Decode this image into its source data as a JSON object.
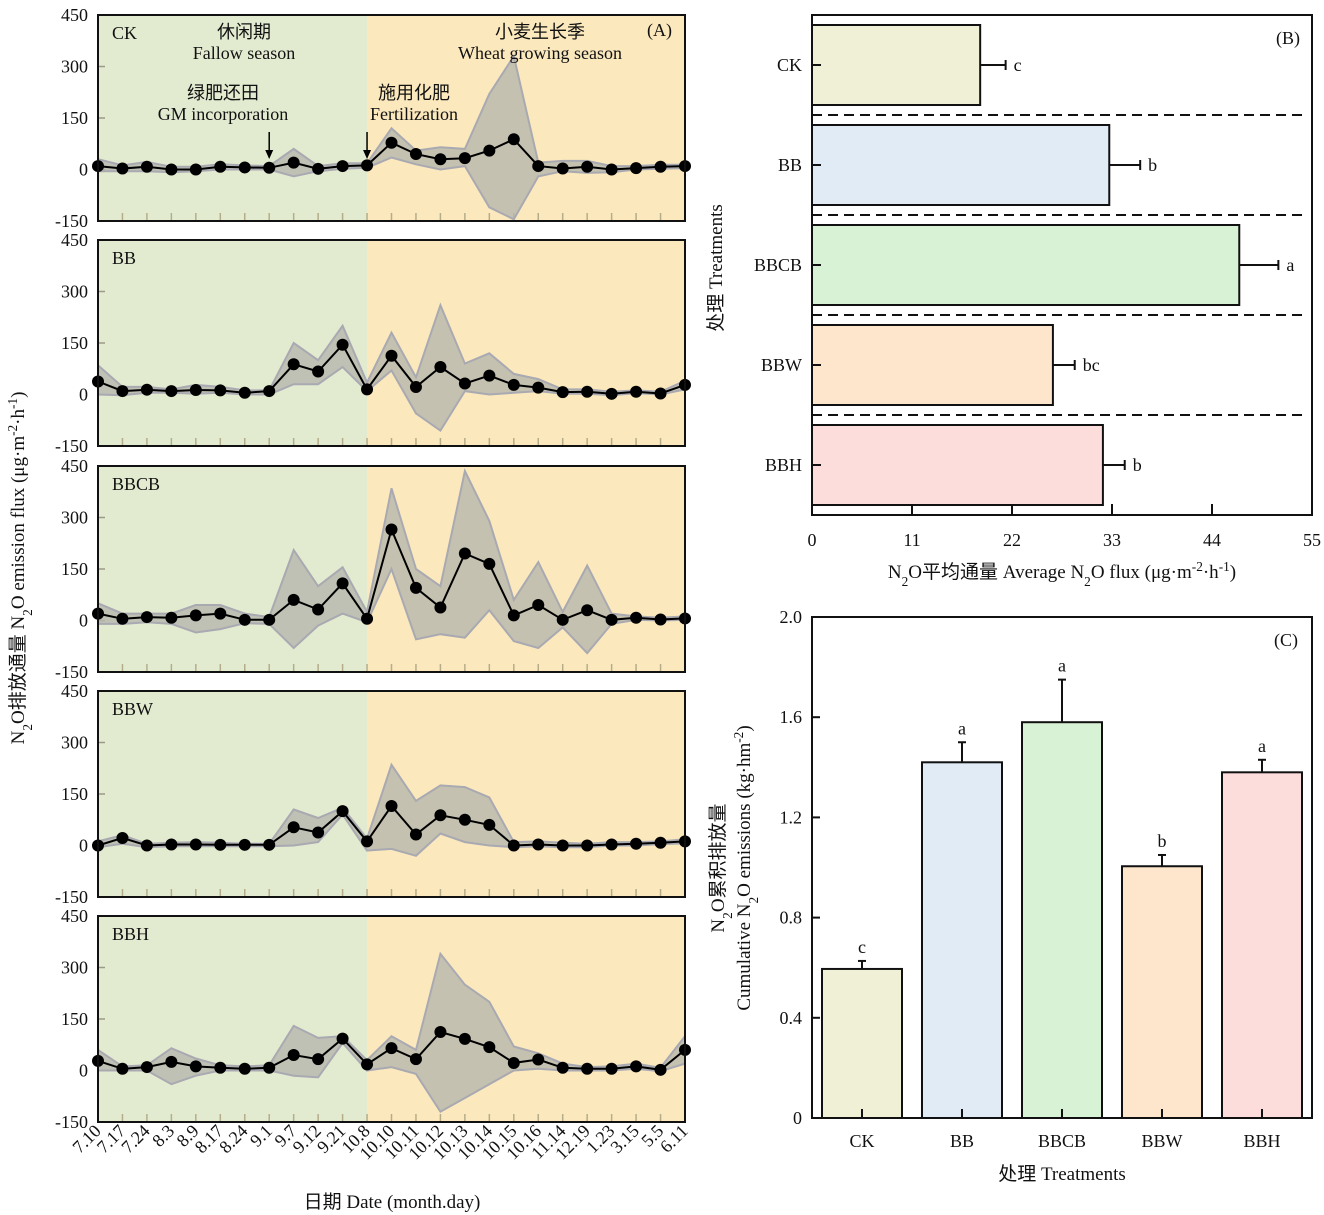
{
  "colors": {
    "fallow_bg": "#e2ebd0",
    "wheat_bg": "#fbe8bd",
    "band_fill": "#b7b6ac",
    "band_stroke": "#a9a9b1",
    "line": "#000000",
    "bars": {
      "CK": "#f0f0d6",
      "BB": "#e0ebf6",
      "BBCB": "#d8f2d6",
      "BBW": "#fde6cc",
      "BBH": "#fddcdc"
    }
  },
  "chart_data": [
    {
      "id": "A",
      "type": "line",
      "panel_label": "(A)",
      "title": "",
      "xlabel": "日期 Date (month.day)",
      "ylabel": "N₂O排放通量 N₂O emission flux (μg·m⁻²·h⁻¹)",
      "ylim": [
        -150,
        450
      ],
      "yticks": [
        -150,
        0,
        150,
        300,
        450
      ],
      "x": [
        "7.10",
        "7.17",
        "7.24",
        "8.3",
        "8.9",
        "8.17",
        "8.24",
        "9.1",
        "9.7",
        "9.12",
        "9.21",
        "10.8",
        "10.10",
        "10.11",
        "10.12",
        "10.13",
        "10.14",
        "10.15",
        "10.16",
        "11.14",
        "12.19",
        "1.23",
        "3.15",
        "5.5",
        "6.11"
      ],
      "season_split_index": 11,
      "annotations": {
        "fallow_cn": "休闲期",
        "fallow_en": "Fallow season",
        "wheat_cn": "小麦生长季",
        "wheat_en": "Wheat growing season",
        "gm_cn": "绿肥还田",
        "gm_en": "GM incorporation",
        "gm_index": 7,
        "fert_cn": "施用化肥",
        "fert_en": "Fertilization",
        "fert_index": 11
      },
      "series": [
        {
          "name": "CK",
          "values": [
            10,
            3,
            8,
            0,
            0,
            8,
            6,
            5,
            20,
            2,
            10,
            12,
            78,
            45,
            30,
            33,
            55,
            88,
            10,
            3,
            8,
            0,
            4,
            8,
            10
          ],
          "upper": [
            30,
            12,
            22,
            8,
            8,
            15,
            12,
            10,
            60,
            10,
            18,
            18,
            120,
            55,
            65,
            60,
            220,
            330,
            20,
            25,
            25,
            10,
            10,
            14,
            14
          ],
          "lower": [
            -5,
            -5,
            -5,
            -8,
            -5,
            0,
            0,
            0,
            -20,
            -5,
            2,
            5,
            35,
            15,
            0,
            10,
            -110,
            -145,
            -20,
            -5,
            -10,
            -8,
            0,
            2,
            4
          ]
        },
        {
          "name": "BB",
          "values": [
            38,
            10,
            14,
            10,
            13,
            12,
            5,
            10,
            88,
            67,
            145,
            15,
            113,
            22,
            80,
            32,
            55,
            28,
            20,
            7,
            8,
            2,
            8,
            3,
            28
          ],
          "upper": [
            85,
            22,
            22,
            15,
            28,
            22,
            12,
            12,
            150,
            100,
            200,
            35,
            180,
            50,
            260,
            90,
            120,
            60,
            45,
            15,
            15,
            8,
            12,
            8,
            40
          ],
          "lower": [
            0,
            -2,
            5,
            5,
            2,
            5,
            0,
            0,
            30,
            30,
            80,
            10,
            70,
            -55,
            -105,
            10,
            0,
            5,
            10,
            2,
            2,
            -2,
            4,
            0,
            15
          ]
        },
        {
          "name": "BBCB",
          "values": [
            20,
            5,
            10,
            8,
            15,
            20,
            2,
            2,
            60,
            32,
            108,
            5,
            265,
            95,
            38,
            195,
            165,
            15,
            45,
            2,
            30,
            2,
            8,
            3,
            6
          ],
          "upper": [
            50,
            20,
            20,
            20,
            45,
            45,
            20,
            10,
            205,
            100,
            155,
            25,
            385,
            150,
            100,
            435,
            290,
            60,
            170,
            25,
            160,
            20,
            12,
            8,
            12
          ],
          "lower": [
            -10,
            -10,
            -5,
            -10,
            -35,
            -25,
            -8,
            -10,
            -80,
            -15,
            20,
            -5,
            150,
            -55,
            -40,
            -50,
            30,
            -60,
            -80,
            -20,
            -95,
            -10,
            2,
            0,
            2
          ]
        },
        {
          "name": "BBW",
          "values": [
            0,
            22,
            0,
            3,
            3,
            2,
            2,
            2,
            53,
            38,
            100,
            12,
            115,
            32,
            88,
            75,
            60,
            0,
            3,
            0,
            0,
            3,
            5,
            8,
            12
          ],
          "upper": [
            12,
            30,
            5,
            8,
            10,
            8,
            5,
            5,
            105,
            80,
            110,
            20,
            235,
            130,
            175,
            170,
            140,
            10,
            12,
            8,
            5,
            10,
            10,
            12,
            18
          ],
          "lower": [
            -5,
            5,
            -5,
            -2,
            -2,
            -2,
            -2,
            -2,
            0,
            10,
            90,
            -15,
            -10,
            -30,
            35,
            10,
            0,
            -5,
            -2,
            -5,
            -5,
            0,
            0,
            4,
            6
          ]
        },
        {
          "name": "BBH",
          "values": [
            28,
            5,
            10,
            25,
            12,
            8,
            5,
            8,
            45,
            33,
            93,
            18,
            65,
            33,
            112,
            92,
            68,
            22,
            32,
            8,
            5,
            5,
            12,
            2,
            60
          ],
          "upper": [
            60,
            12,
            15,
            65,
            35,
            15,
            12,
            15,
            130,
            95,
            100,
            30,
            100,
            60,
            340,
            250,
            200,
            70,
            50,
            20,
            10,
            12,
            20,
            8,
            100
          ],
          "lower": [
            0,
            0,
            0,
            -40,
            -15,
            0,
            0,
            0,
            -15,
            -20,
            80,
            0,
            10,
            -10,
            -120,
            -80,
            -40,
            0,
            5,
            0,
            0,
            0,
            5,
            -2,
            20
          ]
        }
      ]
    },
    {
      "id": "B",
      "type": "bar",
      "orientation": "horizontal",
      "panel_label": "(B)",
      "xlabel": "N₂O平均通量 Average N₂O flux (μg·m⁻²·h⁻¹)",
      "ylabel": "处理 Treatments",
      "xlim": [
        0,
        55
      ],
      "xticks": [
        0,
        11,
        22,
        33,
        44,
        55
      ],
      "categories": [
        "CK",
        "BB",
        "BBCB",
        "BBW",
        "BBH"
      ],
      "values": [
        18.5,
        32.7,
        47.0,
        26.5,
        32.0
      ],
      "errors": [
        2.8,
        3.4,
        4.3,
        2.4,
        2.4
      ],
      "significance": [
        "c",
        "b",
        "a",
        "bc",
        "b"
      ]
    },
    {
      "id": "C",
      "type": "bar",
      "orientation": "vertical",
      "panel_label": "(C)",
      "xlabel": "处理 Treatments",
      "ylabel_line1": "N₂O累积排放量",
      "ylabel_line2": "Cumulative N₂O emissions (kg·hm⁻²)",
      "ylim": [
        0,
        2.0
      ],
      "yticks": [
        "0",
        "0.4",
        "0.8",
        "1.2",
        "1.6",
        "2.0"
      ],
      "ytick_values": [
        0,
        0.4,
        0.8,
        1.2,
        1.6,
        2.0
      ],
      "categories": [
        "CK",
        "BB",
        "BBCB",
        "BBW",
        "BBH"
      ],
      "values": [
        0.595,
        1.42,
        1.58,
        1.005,
        1.38
      ],
      "errors": [
        0.032,
        0.08,
        0.17,
        0.045,
        0.05
      ],
      "significance": [
        "c",
        "a",
        "a",
        "b",
        "a"
      ]
    }
  ]
}
